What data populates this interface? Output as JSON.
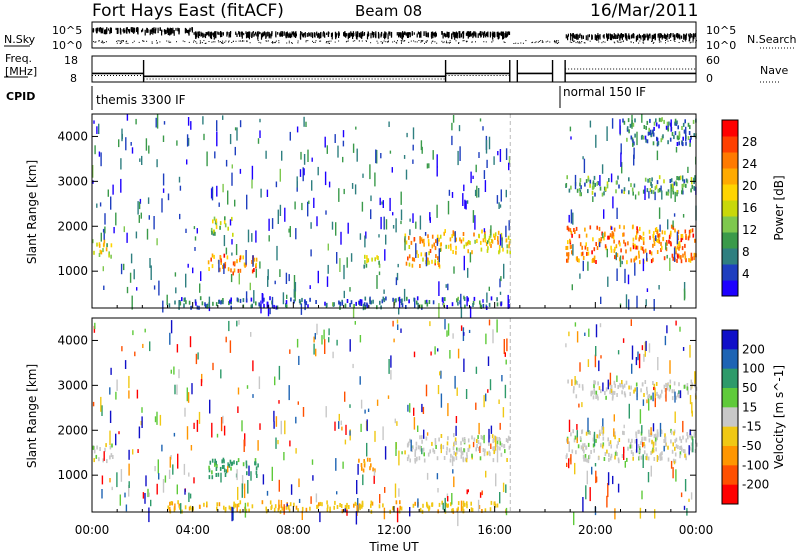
{
  "header": {
    "station": "Fort Hays East (fitACF)",
    "beam": "Beam 08",
    "date": "16/Mar/2011"
  },
  "top_panels": {
    "nsky_label": "N.Sky",
    "nsearch_label": "N.Search",
    "noise_tick_top": "10^5",
    "noise_tick_bottom": "10^0",
    "freq_label_1": "Freq.",
    "freq_label_2": "[MHz]",
    "freq_ticks": [
      "18",
      "8"
    ],
    "nave_label": "Nave",
    "nave_ticks": [
      "60",
      "0"
    ],
    "cpid_label": "CPID",
    "cpid_segments": [
      {
        "label": "themis 3300 IF",
        "start_hour": 0.0,
        "end_hour": 18.8
      },
      {
        "label": "normal 150 IF",
        "start_hour": 18.8,
        "end_hour": 24.0
      }
    ],
    "freq_mhz": [
      {
        "start_hour": 0.0,
        "end_hour": 2.05,
        "value": 11.3
      },
      {
        "start_hour": 2.05,
        "end_hour": 14.05,
        "value": 10.2
      },
      {
        "start_hour": 14.05,
        "end_hour": 16.6,
        "value": 11.3
      },
      {
        "start_hour": 16.9,
        "end_hour": 18.3,
        "value": 11.3
      },
      {
        "start_hour": 18.8,
        "end_hour": 24.0,
        "value": 11.3
      }
    ],
    "nave": [
      {
        "start_hour": 0.0,
        "end_hour": 2.05,
        "value": 15
      },
      {
        "start_hour": 2.05,
        "end_hour": 14.05,
        "value": 7
      },
      {
        "start_hour": 14.05,
        "end_hour": 16.6,
        "value": 15
      },
      {
        "start_hour": 18.8,
        "end_hour": 24.0,
        "value": 30
      }
    ]
  },
  "axes": {
    "xlabel": "Time UT",
    "x_ticks": [
      "00:00",
      "04:00",
      "08:00",
      "12:00",
      "16:00",
      "20:00",
      "00:00"
    ],
    "ylabel": "Slant Range [km]",
    "y_ticks": [
      "1000",
      "2000",
      "3000",
      "4000"
    ],
    "ylim": [
      180,
      4500
    ],
    "xlim": [
      0,
      24
    ]
  },
  "colorbars": {
    "power": {
      "label": "Power [dB]",
      "ticks": [
        "28",
        "24",
        "20",
        "16",
        "12",
        "8",
        "4"
      ],
      "range": [
        0,
        32
      ],
      "colors": [
        "#1e00ff",
        "#1f3fbf",
        "#2f7f80",
        "#3a9a4a",
        "#7ec84e",
        "#c8d80a",
        "#ffd400",
        "#ffaa00",
        "#ff7a00",
        "#ff4000",
        "#ff0000"
      ]
    },
    "velocity": {
      "label": "Velocity [m s^-1]",
      "ticks": [
        "200",
        "100",
        "50",
        "15",
        "-15",
        "-50",
        "-100",
        "-200"
      ],
      "colors": [
        "#1010c8",
        "#1e64b4",
        "#2e9a6a",
        "#5fca3a",
        "#c8c8c8",
        "#f0c814",
        "#ff9600",
        "#ff5000",
        "#ff0000"
      ]
    }
  },
  "chart_data": {
    "type": "heatmap",
    "title": "Fort Hays East (fitACF)  Beam 08  16/Mar/2011",
    "xlabel": "Time UT",
    "ylabel": "Slant Range [km]",
    "xlim": [
      0,
      24
    ],
    "ylim": [
      180,
      4500
    ],
    "data_gaps_hours": [
      [
        16.6,
        18.8
      ]
    ],
    "power_echo_regions": [
      {
        "t_start": 0.0,
        "t_end": 0.8,
        "range_low_km": 1300,
        "range_high_km": 1700,
        "power_db": 16
      },
      {
        "t_start": 4.6,
        "t_end": 6.6,
        "range_low_km": 950,
        "range_high_km": 1350,
        "power_db": 24
      },
      {
        "t_start": 4.7,
        "t_end": 5.6,
        "range_low_km": 1800,
        "range_high_km": 2200,
        "power_db": 14
      },
      {
        "t_start": 10.5,
        "t_end": 11.4,
        "range_low_km": 1100,
        "range_high_km": 1350,
        "power_db": 14
      },
      {
        "t_start": 12.4,
        "t_end": 13.9,
        "range_low_km": 1100,
        "range_high_km": 1800,
        "power_db": 22
      },
      {
        "t_start": 13.9,
        "t_end": 16.6,
        "range_low_km": 1400,
        "range_high_km": 1900,
        "power_db": 20
      },
      {
        "t_start": 18.8,
        "t_end": 24.0,
        "range_low_km": 1200,
        "range_high_km": 2000,
        "power_db": 24
      },
      {
        "t_start": 18.8,
        "t_end": 24.0,
        "range_low_km": 2700,
        "range_high_km": 3100,
        "power_db": 10
      },
      {
        "t_start": 21.0,
        "t_end": 24.0,
        "range_low_km": 3800,
        "range_high_km": 4400,
        "power_db": 8
      },
      {
        "t_start": 3.0,
        "t_end": 16.6,
        "range_low_km": 180,
        "range_high_km": 400,
        "power_db": 6
      }
    ],
    "velocity_echo_regions": [
      {
        "t_start": 0.0,
        "t_end": 0.8,
        "range_low_km": 1300,
        "range_high_km": 1700,
        "velocity_ms": 0
      },
      {
        "t_start": 4.6,
        "t_end": 6.6,
        "range_low_km": 950,
        "range_high_km": 1350,
        "velocity_ms": 60
      },
      {
        "t_start": 10.5,
        "t_end": 11.4,
        "range_low_km": 1100,
        "range_high_km": 1350,
        "velocity_ms": -60
      },
      {
        "t_start": 12.4,
        "t_end": 16.6,
        "range_low_km": 1300,
        "range_high_km": 1900,
        "velocity_ms": 0
      },
      {
        "t_start": 18.8,
        "t_end": 24.0,
        "range_low_km": 1300,
        "range_high_km": 2000,
        "velocity_ms": 0
      },
      {
        "t_start": 18.8,
        "t_end": 24.0,
        "range_low_km": 2700,
        "range_high_km": 3100,
        "velocity_ms": 0
      },
      {
        "t_start": 3.0,
        "t_end": 16.6,
        "range_low_km": 180,
        "range_high_km": 400,
        "velocity_ms": -40
      }
    ]
  }
}
